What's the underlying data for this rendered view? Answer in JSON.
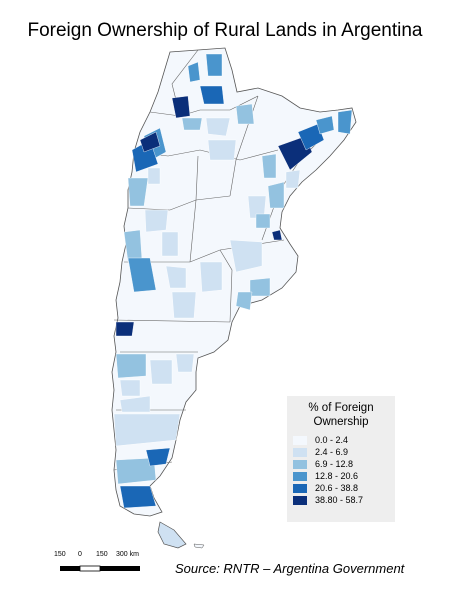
{
  "title": "Foreign Ownership of Rural Lands in Argentina",
  "legend": {
    "title_line1": "% of Foreign",
    "title_line2": "Ownership",
    "classes": [
      {
        "label": "0.0 - 2.4",
        "color": "#f4f8fd"
      },
      {
        "label": "2.4 - 6.9",
        "color": "#cfe1f2"
      },
      {
        "label": "6.9 - 12.8",
        "color": "#93c2e0"
      },
      {
        "label": "12.8 - 20.6",
        "color": "#4a95cd"
      },
      {
        "label": "20.6 - 38.8",
        "color": "#1a67b6"
      },
      {
        "label": "38.80 - 58.7",
        "color": "#0b2f7a"
      }
    ]
  },
  "scale_bar": {
    "labels": [
      "150",
      "0",
      "150",
      "300 km"
    ]
  },
  "source": "Source: RNTR – Argentina Government"
}
